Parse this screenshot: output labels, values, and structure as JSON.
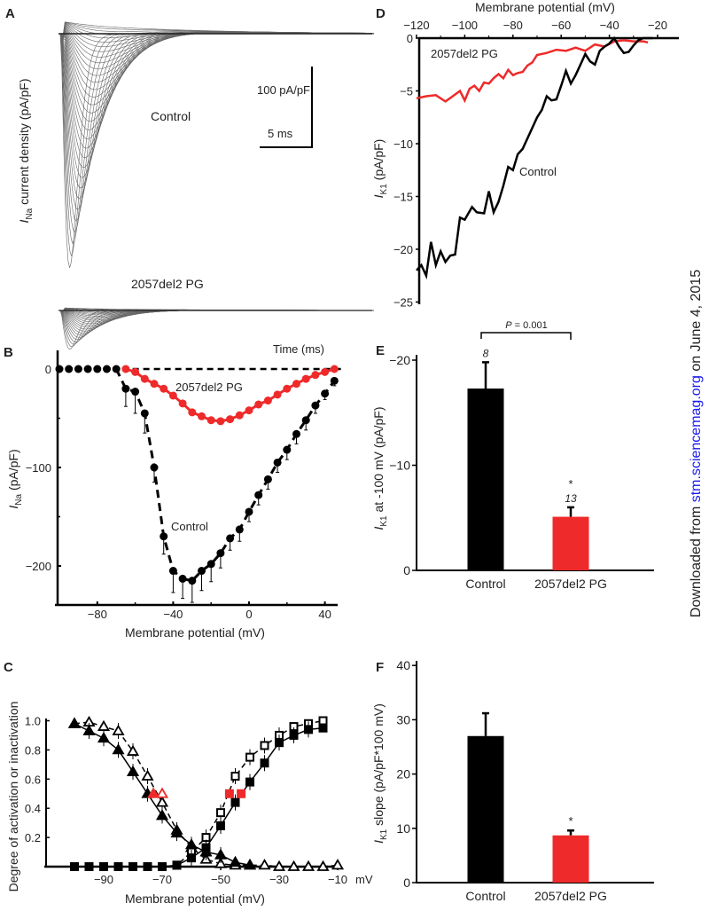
{
  "colors": {
    "control": "#000000",
    "mutant": "#ee2a2a",
    "trace": "#666666",
    "link": "#1a1aee"
  },
  "watermark": {
    "prefix": "Downloaded from ",
    "link": "stm.sciencemag.org",
    "suffix": " on June 4, 2015"
  },
  "chart_data": [
    {
      "panel_label": "A",
      "type": "line",
      "ylabel": {
        "i": "I",
        "sub": "Na",
        "rest": " current density (pA/pF)"
      },
      "series_labels": [
        "Control",
        "2057del2 PG"
      ],
      "scale_bar_y": "100 pA/pF",
      "scale_bar_x": "5 ms",
      "xlabel": "Time (ms)",
      "time_range_ms": [
        0,
        30
      ],
      "peak_current_density": {
        "Control": -290,
        "2057del2 PG": -48
      }
    },
    {
      "panel_label": "B",
      "type": "line",
      "xlabel": "Membrane potential (mV)",
      "ylabel": {
        "i": "I",
        "sub": "Na",
        "rest": " (pA/pF)"
      },
      "xlim": [
        -100,
        47
      ],
      "ylim": [
        -225,
        10
      ],
      "xticks": [
        -80,
        -40,
        0,
        40
      ],
      "yticks": [
        0,
        -100,
        -200
      ],
      "series": [
        {
          "name": "Control",
          "x": [
            -100,
            -95,
            -90,
            -85,
            -80,
            -75,
            -70,
            -65,
            -60,
            -55,
            -50,
            -45,
            -40,
            -35,
            -30,
            -25,
            -20,
            -15,
            -10,
            -5,
            0,
            5,
            10,
            15,
            20,
            25,
            30,
            35,
            40,
            45
          ],
          "values": [
            0,
            0,
            0,
            0,
            0,
            0,
            0,
            -20,
            -23,
            -45,
            -100,
            -170,
            -205,
            -213,
            -215,
            -205,
            -198,
            -187,
            -172,
            -163,
            -145,
            -128,
            -112,
            -95,
            -82,
            -66,
            -52,
            -37,
            -25,
            -12
          ],
          "errors": [
            0,
            0,
            0,
            0,
            0,
            0,
            0,
            18,
            22,
            20,
            15,
            18,
            22,
            20,
            22,
            20,
            18,
            15,
            12,
            12,
            10,
            10,
            10,
            10,
            10,
            10,
            10,
            8,
            6,
            5
          ]
        },
        {
          "name": "2057del2 PG",
          "x": [
            -65,
            -60,
            -55,
            -50,
            -45,
            -40,
            -35,
            -30,
            -25,
            -20,
            -15,
            -10,
            -5,
            0,
            5,
            10,
            15,
            20,
            25,
            30,
            35,
            40,
            45
          ],
          "values": [
            0,
            -3,
            -10,
            -15,
            -20,
            -27,
            -35,
            -44,
            -48,
            -52,
            -53,
            -51,
            -47,
            -42,
            -36,
            -32,
            -26,
            -20,
            -15,
            -10,
            -6,
            -3,
            0
          ]
        }
      ]
    },
    {
      "panel_label": "C",
      "type": "line",
      "xlabel": "Membrane potential (mV)",
      "ylabel": "Degree of activation or inactivation",
      "xlim": [
        -100,
        -8
      ],
      "ylim": [
        0,
        1.0
      ],
      "xticks": [
        -90,
        -70,
        -50,
        -30,
        -10
      ],
      "x_tick_unit": "mV",
      "yticks": [
        0.2,
        0.4,
        0.6,
        0.8,
        1.0
      ],
      "series": [
        {
          "name": "Inactivation (open triangles)",
          "marker": "open-triangle",
          "dash": true,
          "x": [
            -100,
            -95,
            -90,
            -85,
            -80,
            -75,
            -70,
            -65,
            -60,
            -55,
            -50,
            -45,
            -40,
            -35,
            -30,
            -25,
            -20,
            -15,
            -10
          ],
          "values": [
            0.98,
            0.99,
            0.96,
            0.93,
            0.79,
            0.62,
            0.44,
            0.25,
            0.13,
            0.05,
            0.02,
            0.01,
            0.01,
            0.01,
            0,
            0,
            0,
            0,
            0.01
          ]
        },
        {
          "name": "Inactivation (filled triangles)",
          "marker": "filled-triangle",
          "dash": false,
          "x": [
            -100,
            -95,
            -90,
            -85,
            -80,
            -75,
            -70,
            -65,
            -60,
            -55,
            -50,
            -45,
            -40
          ],
          "values": [
            0.98,
            0.93,
            0.88,
            0.8,
            0.65,
            0.5,
            0.35,
            0.23,
            0.15,
            0.1,
            0.08,
            0.03,
            0.01
          ]
        },
        {
          "name": "Activation (open squares)",
          "marker": "open-square",
          "dash": true,
          "x": [
            -100,
            -95,
            -90,
            -85,
            -80,
            -75,
            -70,
            -65,
            -60,
            -55,
            -50,
            -45,
            -40,
            -35,
            -30,
            -25,
            -20,
            -15
          ],
          "values": [
            0,
            0,
            0,
            0,
            0,
            0,
            0,
            0.01,
            0.1,
            0.2,
            0.37,
            0.62,
            0.75,
            0.83,
            0.9,
            0.96,
            0.98,
            1.0
          ]
        },
        {
          "name": "Activation (filled squares)",
          "marker": "filled-square",
          "dash": false,
          "x": [
            -100,
            -95,
            -90,
            -85,
            -80,
            -75,
            -70,
            -65,
            -60,
            -55,
            -50,
            -45,
            -40,
            -35,
            -30,
            -25,
            -20,
            -15
          ],
          "values": [
            0,
            0,
            0,
            0,
            0,
            0,
            0,
            0.01,
            0.06,
            0.13,
            0.28,
            0.44,
            0.58,
            0.71,
            0.85,
            0.9,
            0.94,
            0.95
          ]
        }
      ],
      "half_points": [
        {
          "marker": "filled-triangle",
          "x": -73,
          "y": 0.5
        },
        {
          "marker": "open-triangle",
          "x": -70,
          "y": 0.5
        },
        {
          "marker": "filled-square",
          "x": -47,
          "y": 0.5
        },
        {
          "marker": "filled-square",
          "x": -43,
          "y": 0.5
        }
      ]
    },
    {
      "panel_label": "D",
      "type": "line",
      "xlabel": "Membrane potential (mV)",
      "ylabel": {
        "i": "I",
        "sub": "K1",
        "rest": " (pA/pF)"
      },
      "xlim": [
        -121,
        -12
      ],
      "ylim": [
        -25,
        0
      ],
      "xticks": [
        -120,
        -100,
        -80,
        -60,
        -40,
        -20
      ],
      "yticks": [
        0,
        -5,
        -10,
        -15,
        -20,
        -25
      ],
      "series": [
        {
          "name": "Control",
          "x": [
            -120,
            -118,
            -116,
            -114,
            -112,
            -110,
            -108,
            -106,
            -104,
            -102,
            -100,
            -97,
            -95,
            -92,
            -90,
            -88,
            -86,
            -84,
            -82,
            -80,
            -78,
            -76,
            -74,
            -72,
            -70,
            -68,
            -66,
            -64,
            -62,
            -60,
            -58,
            -56,
            -54,
            -52,
            -50,
            -48,
            -46,
            -44,
            -42,
            -40,
            -38,
            -36,
            -34,
            -32,
            -30,
            -28,
            -26,
            -24,
            -22
          ],
          "values": [
            -22,
            -21.5,
            -22.5,
            -19.3,
            -21.5,
            -20.2,
            -21.2,
            -20.6,
            -20.5,
            -17,
            -17.2,
            -16,
            -16.5,
            -16.6,
            -14.5,
            -16.5,
            -15.5,
            -14,
            -12.2,
            -12.5,
            -11,
            -10.5,
            -9.5,
            -8.5,
            -7.5,
            -6.8,
            -5.5,
            -5.9,
            -5.8,
            -4.5,
            -3.1,
            -4.3,
            -3.5,
            -2.5,
            -1.5,
            -2.2,
            -2.5,
            -1.2,
            -0.8,
            -0.5,
            0,
            -0.8,
            -1.4,
            -1.3,
            -0.7,
            -0.2,
            0,
            0,
            0
          ]
        },
        {
          "name": "2057del2 PG",
          "x": [
            -120,
            -116,
            -112,
            -108,
            -105,
            -102,
            -100,
            -98,
            -96,
            -94,
            -92,
            -90,
            -88,
            -86,
            -84,
            -82,
            -80,
            -78,
            -76,
            -74,
            -72,
            -70,
            -66,
            -62,
            -58,
            -54,
            -50,
            -46,
            -42,
            -38,
            -34,
            -30,
            -26,
            -24
          ],
          "values": [
            -5.7,
            -5.5,
            -5.4,
            -6,
            -5.5,
            -5,
            -5.9,
            -4.8,
            -4.5,
            -5,
            -4.2,
            -4.3,
            -3.8,
            -3.4,
            -3.8,
            -3,
            -3.5,
            -3.3,
            -3.2,
            -2.6,
            -2.3,
            -1.6,
            -1.4,
            -1.1,
            -1.2,
            -0.9,
            -1.2,
            -0.6,
            -0.8,
            -0.3,
            -0.2,
            -0.3,
            -0.3,
            -0.4
          ]
        }
      ]
    },
    {
      "panel_label": "E",
      "type": "bar",
      "categories": [
        "Control",
        "2057del2 PG"
      ],
      "values": [
        -17.3,
        -5.1
      ],
      "errors": [
        2.5,
        0.9
      ],
      "n_labels": [
        "8",
        "13"
      ],
      "significance": [
        "",
        "*"
      ],
      "p_value_label": {
        "p": "P",
        "rest": " = 0.001"
      },
      "ylabel": {
        "i": "I",
        "sub": "K1",
        "rest": " at -100 mV  (pA/pF)"
      },
      "ylim": [
        0,
        -20
      ],
      "yticks": [
        0,
        -10,
        -20
      ]
    },
    {
      "panel_label": "F",
      "type": "bar",
      "categories": [
        "Control",
        "2057del2 PG"
      ],
      "values": [
        27.0,
        8.7
      ],
      "errors": [
        4.2,
        0.9
      ],
      "significance": [
        "",
        "*"
      ],
      "ylabel": {
        "i": "I",
        "sub": "K1",
        "rest": " slope (pA/pF*100 mV)"
      },
      "ylim": [
        0,
        40
      ],
      "yticks": [
        0,
        10,
        20,
        30,
        40
      ]
    }
  ]
}
